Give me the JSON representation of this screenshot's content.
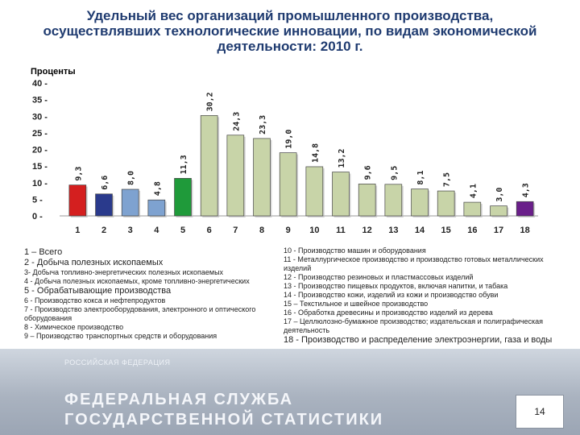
{
  "title": "Удельный вес организаций промышленного производства, осуществлявших технологические инновации, по видам экономической деятельности: 2010 г.",
  "chart_data": {
    "type": "bar",
    "ylabel": "Проценты",
    "ylim": [
      0,
      40
    ],
    "yticks": [
      0,
      5,
      10,
      15,
      20,
      25,
      30,
      35,
      40
    ],
    "categories": [
      "1",
      "2",
      "3",
      "4",
      "5",
      "6",
      "7",
      "8",
      "9",
      "10",
      "11",
      "12",
      "13",
      "14",
      "15",
      "16",
      "17",
      "18"
    ],
    "values": [
      9.3,
      6.6,
      8.0,
      4.8,
      11.3,
      30.2,
      24.3,
      23.3,
      19.0,
      14.8,
      13.2,
      9.6,
      9.5,
      8.1,
      7.5,
      4.1,
      3.0,
      4.3
    ],
    "value_labels": [
      "9,3",
      "6,6",
      "8,0",
      "4,8",
      "11,3",
      "30,2",
      "24,3",
      "23,3",
      "19,0",
      "14,8",
      "13,2",
      "9,6",
      "9,5",
      "8,1",
      "7,5",
      "4,1",
      "3,0",
      "4,3"
    ],
    "colors": [
      "#d41f1f",
      "#2a3a8c",
      "#7ea2d0",
      "#7ea2d0",
      "#1f9a3a",
      "#c8d4a8",
      "#c8d4a8",
      "#c8d4a8",
      "#c8d4a8",
      "#c8d4a8",
      "#c8d4a8",
      "#c8d4a8",
      "#c8d4a8",
      "#c8d4a8",
      "#c8d4a8",
      "#c8d4a8",
      "#c8d4a8",
      "#6a1f8a"
    ],
    "grid": false
  },
  "legend_left": [
    {
      "text": "1 – Всего",
      "big": true,
      "bold": false
    },
    {
      "text": "2 - Добыча полезных ископаемых",
      "big": true,
      "bold": false
    },
    {
      "text": "3- Добыча топливно-энергетических полезных ископаемых",
      "big": false,
      "bold": false
    },
    {
      "text": "4 - Добыча полезных ископаемых, кроме топливно-энергетических",
      "big": false,
      "bold": false
    },
    {
      "text": "5 - Обрабатывающие производства",
      "big": true,
      "bold": false
    },
    {
      "text": "6 - Производство кокса и нефтепродуктов",
      "big": false,
      "bold": false
    },
    {
      "text": "7 - Производство электрооборудования, электронного и оптического оборудования",
      "big": false,
      "bold": false
    },
    {
      "text": "8 - Химическое производство",
      "big": false,
      "bold": false
    },
    {
      "text": "9 – Производство транспортных средств и оборудования",
      "big": false,
      "bold": false
    }
  ],
  "legend_right": [
    {
      "text": "10 - Производство машин и оборудования",
      "big": false,
      "bold": false
    },
    {
      "text": "11 - Металлургическое производство и производство готовых металлических изделий",
      "big": false,
      "bold": false
    },
    {
      "text": "12 - Производство резиновых и пластмассовых изделий",
      "big": false,
      "bold": false
    },
    {
      "text": "13 - Производство пищевых продуктов, включая напитки, и табака",
      "big": false,
      "bold": false
    },
    {
      "text": "14 - Производство кожи, изделий из кожи и производство обуви",
      "big": false,
      "bold": false
    },
    {
      "text": "15 – Текстильное и швейное производство",
      "big": false,
      "bold": false
    },
    {
      "text": "16 - Обработка древесины и производство изделий из дерева",
      "big": false,
      "bold": false
    },
    {
      "text": "17 – Целлюлозно-бумажное производство; издательская и полиграфическая деятельность",
      "big": false,
      "bold": false
    },
    {
      "text": "18 - Производство и распределение электроэнергии, газа и воды",
      "big": true,
      "bold": false
    }
  ],
  "footer": {
    "small": "РОССИЙСКАЯ ФЕДЕРАЦИЯ",
    "line1": "ФЕДЕРАЛЬНАЯ СЛУЖБА",
    "line2": "ГОСУДАРСТВЕННОЙ СТАТИСТИКИ",
    "page": "14"
  }
}
